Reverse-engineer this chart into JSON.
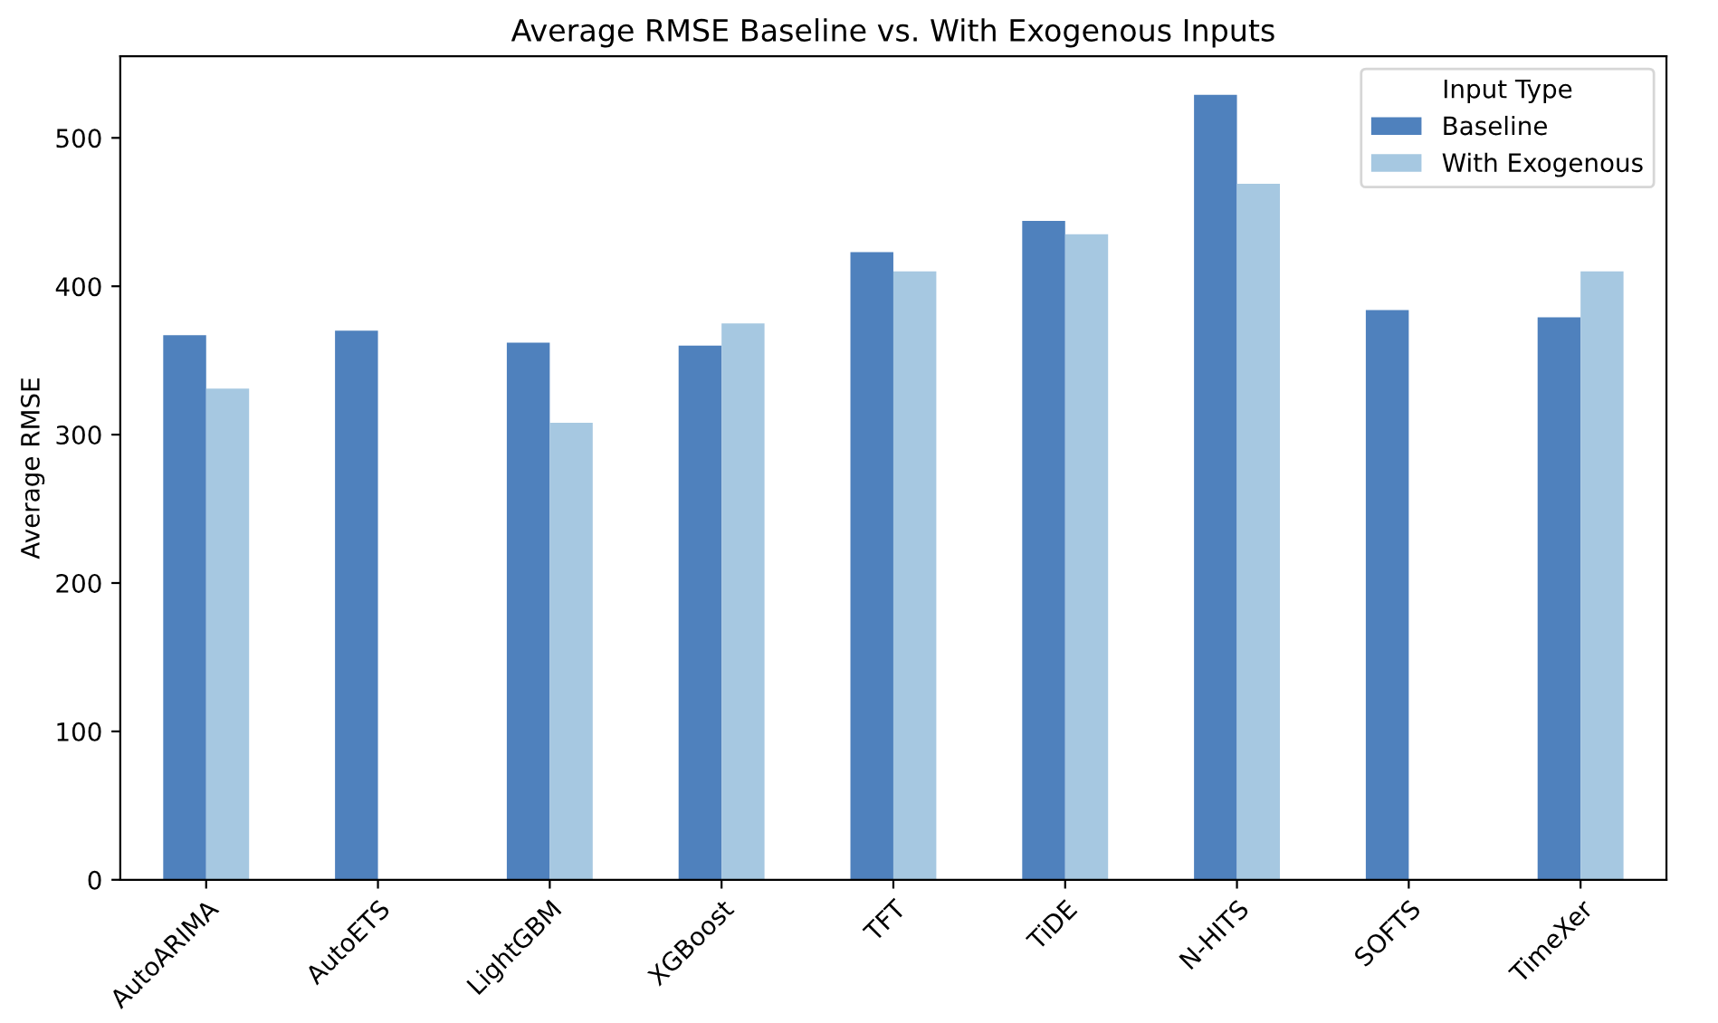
{
  "chart_data": {
    "type": "bar",
    "title": "Average RMSE Baseline vs. With Exogenous Inputs",
    "ylabel": "Average RMSE",
    "legend_title": "Input Type",
    "categories": [
      "AutoARIMA",
      "AutoETS",
      "LightGBM",
      "XGBoost",
      "TFT",
      "TiDE",
      "N-HITS",
      "SOFTS",
      "TimeXer"
    ],
    "series": [
      {
        "name": "Baseline",
        "color": "#4f81bd",
        "values": [
          367,
          370,
          362,
          360,
          423,
          444,
          529,
          384,
          379
        ]
      },
      {
        "name": "With Exogenous",
        "color": "#a6c8e1",
        "values": [
          331,
          null,
          308,
          375,
          410,
          435,
          469,
          null,
          410
        ]
      }
    ],
    "ylim": [
      0,
      555
    ],
    "yticks": [
      0,
      100,
      200,
      300,
      400,
      500
    ],
    "grid": false,
    "legend": "top right"
  }
}
